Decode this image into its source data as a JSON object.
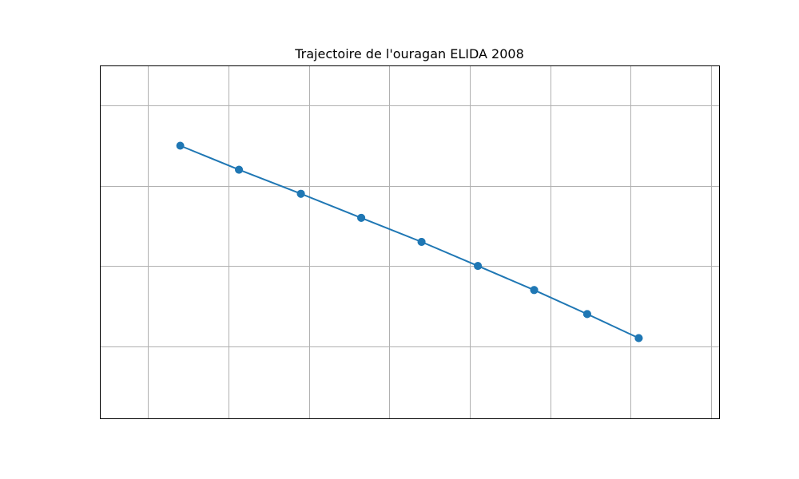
{
  "chart_data": {
    "type": "line",
    "title": "Trajectoire de l'ouragan ELIDA 2008",
    "xlabel": "",
    "ylabel": "",
    "xlim": [
      0,
      7.7
    ],
    "ylim": [
      0,
      4.4
    ],
    "x_gridlines": [
      0.6,
      1.6,
      2.6,
      3.6,
      4.6,
      5.6,
      6.6,
      7.6
    ],
    "y_gridlines": [
      0.9,
      1.9,
      2.9,
      3.9
    ],
    "grid": true,
    "legend": "none",
    "tick_labels_visible": false,
    "series": [
      {
        "color": "#1f77b4",
        "marker": "circle",
        "points": [
          {
            "x": 6.7,
            "y": 1.0
          },
          {
            "x": 6.06,
            "y": 1.3
          },
          {
            "x": 5.4,
            "y": 1.6
          },
          {
            "x": 4.7,
            "y": 1.9
          },
          {
            "x": 4.0,
            "y": 2.2
          },
          {
            "x": 3.25,
            "y": 2.5
          },
          {
            "x": 2.5,
            "y": 2.8
          },
          {
            "x": 1.73,
            "y": 3.1
          },
          {
            "x": 1.0,
            "y": 3.4
          },
          {
            "x": 1.73,
            "y": 3.1
          },
          {
            "x": 2.5,
            "y": 2.8
          },
          {
            "x": 3.25,
            "y": 2.5
          },
          {
            "x": 4.0,
            "y": 2.2
          },
          {
            "x": 4.7,
            "y": 1.9
          },
          {
            "x": 5.4,
            "y": 1.6
          },
          {
            "x": 6.06,
            "y": 1.3
          },
          {
            "x": 6.7,
            "y": 1.0
          }
        ]
      }
    ]
  }
}
